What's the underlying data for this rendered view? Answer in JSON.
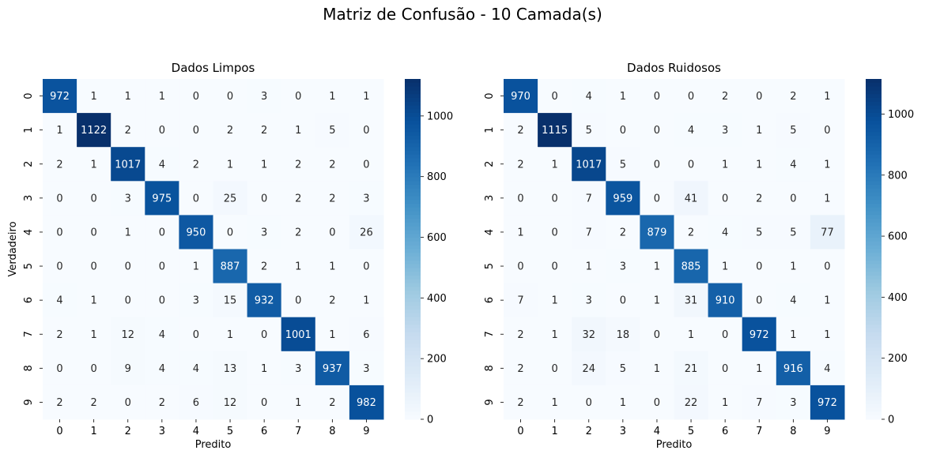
{
  "title": "Matriz de Confusão - 10 Camada(s)",
  "chart_data": [
    {
      "type": "heatmap",
      "title": "Dados Limpos",
      "xlabel": "Predito",
      "ylabel": "Verdadeiro",
      "x_categories": [
        "0",
        "1",
        "2",
        "3",
        "4",
        "5",
        "6",
        "7",
        "8",
        "9"
      ],
      "y_categories": [
        "0",
        "1",
        "2",
        "3",
        "4",
        "5",
        "6",
        "7",
        "8",
        "9"
      ],
      "colormap": "Blues",
      "vmin": 0,
      "vmax": 1122,
      "colorbar_ticks": [
        0,
        200,
        400,
        600,
        800,
        1000
      ],
      "values": [
        [
          972,
          1,
          1,
          1,
          0,
          0,
          3,
          0,
          1,
          1
        ],
        [
          1,
          1122,
          2,
          0,
          0,
          2,
          2,
          1,
          5,
          0
        ],
        [
          2,
          1,
          1017,
          4,
          2,
          1,
          1,
          2,
          2,
          0
        ],
        [
          0,
          0,
          3,
          975,
          0,
          25,
          0,
          2,
          2,
          3
        ],
        [
          0,
          0,
          1,
          0,
          950,
          0,
          3,
          2,
          0,
          26
        ],
        [
          0,
          0,
          0,
          0,
          1,
          887,
          2,
          1,
          1,
          0
        ],
        [
          4,
          1,
          0,
          0,
          3,
          15,
          932,
          0,
          2,
          1
        ],
        [
          2,
          1,
          12,
          4,
          0,
          1,
          0,
          1001,
          1,
          6
        ],
        [
          0,
          0,
          9,
          4,
          4,
          13,
          1,
          3,
          937,
          3
        ],
        [
          2,
          2,
          0,
          2,
          6,
          12,
          0,
          1,
          2,
          982
        ]
      ]
    },
    {
      "type": "heatmap",
      "title": "Dados Ruidosos",
      "xlabel": "Predito",
      "ylabel": "",
      "x_categories": [
        "0",
        "1",
        "2",
        "3",
        "4",
        "5",
        "6",
        "7",
        "8",
        "9"
      ],
      "y_categories": [
        "0",
        "1",
        "2",
        "3",
        "4",
        "5",
        "6",
        "7",
        "8",
        "9"
      ],
      "colormap": "Blues",
      "vmin": 0,
      "vmax": 1115,
      "colorbar_ticks": [
        0,
        200,
        400,
        600,
        800,
        1000
      ],
      "values": [
        [
          970,
          0,
          4,
          1,
          0,
          0,
          2,
          0,
          2,
          1
        ],
        [
          2,
          1115,
          5,
          0,
          0,
          4,
          3,
          1,
          5,
          0
        ],
        [
          2,
          1,
          1017,
          5,
          0,
          0,
          1,
          1,
          4,
          1
        ],
        [
          0,
          0,
          7,
          959,
          0,
          41,
          0,
          2,
          0,
          1
        ],
        [
          1,
          0,
          7,
          2,
          879,
          2,
          4,
          5,
          5,
          77
        ],
        [
          0,
          0,
          1,
          3,
          1,
          885,
          1,
          0,
          1,
          0
        ],
        [
          7,
          1,
          3,
          0,
          1,
          31,
          910,
          0,
          4,
          1
        ],
        [
          2,
          1,
          32,
          18,
          0,
          1,
          0,
          972,
          1,
          1
        ],
        [
          2,
          0,
          24,
          5,
          1,
          21,
          0,
          1,
          916,
          4
        ],
        [
          2,
          1,
          0,
          1,
          0,
          22,
          1,
          7,
          3,
          972
        ]
      ]
    }
  ]
}
